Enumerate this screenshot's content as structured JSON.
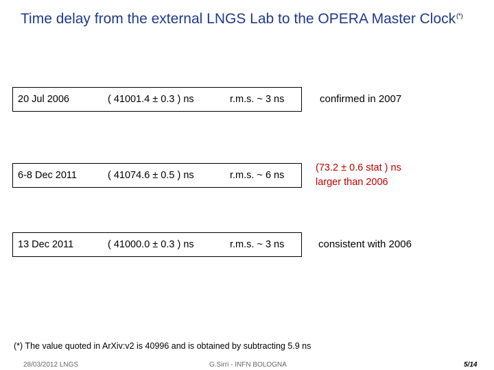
{
  "title": {
    "text": "Time delay from the external LNGS Lab to the OPERA Master Clock",
    "footnote_marker": "(*)"
  },
  "rows": [
    {
      "date": "20 Jul 2006",
      "value": "( 41001.4 ± 0.3 ) ns",
      "rms": "r.m.s.  ~ 3 ns",
      "note": [
        "confirmed in 2007"
      ],
      "note_color": "#000000"
    },
    {
      "date": "6-8 Dec 2011",
      "value": "( 41074.6 ± 0.5 ) ns",
      "rms": "r.m.s.  ~ 6 ns",
      "note": [
        "(73.2 ± 0.6 stat ) ns",
        "larger than 2006"
      ],
      "note_color": "#c00000"
    },
    {
      "date": "13 Dec 2011",
      "value": "( 41000.0 ± 0.3 ) ns",
      "rms": "r.m.s.  ~ 3 ns",
      "note": [
        "consistent with 2006"
      ],
      "note_color": "#000000"
    }
  ],
  "footnote": "(*) The value quoted in ArXiv:v2 is 40996 and is obtained by subtracting 5.9 ns",
  "footer": {
    "left": "28/03/2012  LNGS",
    "center": "G.Sirri - INFN BOLOGNA",
    "right": "5/14"
  },
  "colors": {
    "title": "#1f3a8a",
    "highlight": "#c00000"
  }
}
